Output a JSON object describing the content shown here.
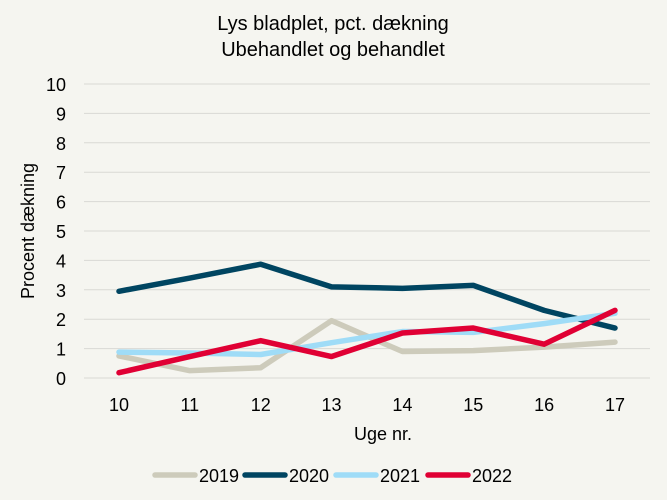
{
  "chart_data": {
    "type": "line",
    "title": "Lys bladplet, pct. dækning",
    "subtitle": "Ubehandlet og behandlet",
    "xlabel": "Uge nr.",
    "ylabel": "Procent dækning",
    "x": [
      10,
      11,
      12,
      13,
      14,
      15,
      16,
      17
    ],
    "ylim": [
      0,
      10
    ],
    "yticks": [
      0,
      1,
      2,
      3,
      4,
      5,
      6,
      7,
      8,
      9,
      10
    ],
    "grid": true,
    "legend": "bottom",
    "series": [
      {
        "name": "2019",
        "color": "#cdcbbb",
        "values": [
          0.75,
          0.25,
          0.35,
          1.95,
          0.9,
          0.93,
          1.05,
          1.22
        ]
      },
      {
        "name": "2020",
        "color": "#004561",
        "values": [
          2.95,
          3.4,
          3.87,
          3.1,
          3.05,
          3.15,
          2.3,
          1.7
        ]
      },
      {
        "name": "2021",
        "color": "#9fdcf7",
        "values": [
          0.88,
          0.85,
          0.8,
          1.2,
          1.58,
          1.55,
          1.85,
          2.2
        ]
      },
      {
        "name": "2022",
        "color": "#e00034",
        "values": [
          0.18,
          0.73,
          1.27,
          0.73,
          1.53,
          1.7,
          1.15,
          2.3
        ]
      }
    ]
  }
}
